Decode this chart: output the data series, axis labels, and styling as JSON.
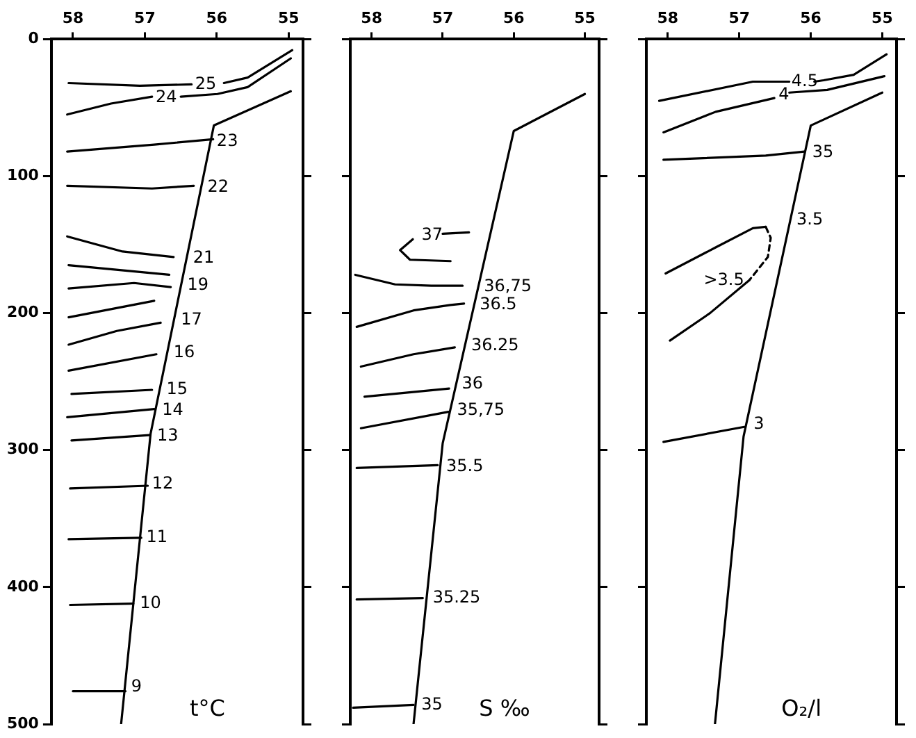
{
  "chart_data": [
    {
      "type": "line",
      "title": "t°C",
      "xlim": [
        58.3,
        54.8
      ],
      "xticks": [
        58,
        57,
        56,
        55
      ],
      "ylim": [
        500,
        0
      ],
      "yticks": [
        0,
        100,
        200,
        300,
        400,
        500
      ],
      "grid": false,
      "marker": "none",
      "series": [
        {
          "color": "#000000",
          "x": [
            54.97,
            56.04,
            56.92,
            57.33
          ],
          "values": [
            38,
            63,
            288,
            500
          ]
        },
        {
          "color": "#000000",
          "x": [
            58.06,
            57.07,
            56.35,
            56.1,
            55.9,
            55.57,
            54.95
          ],
          "values": [
            32,
            34,
            33,
            null,
            32,
            28,
            8
          ]
        },
        {
          "color": "#000000",
          "x": [
            58.08,
            57.47,
            56.9,
            56.7,
            56.5,
            55.99,
            55.57,
            54.97
          ],
          "values": [
            55,
            47,
            42,
            null,
            42,
            40,
            35,
            14
          ]
        },
        {
          "color": "#000000",
          "x": [
            58.08,
            56.87,
            56.05
          ],
          "values": [
            82,
            77,
            73
          ]
        },
        {
          "color": "#000000",
          "x": [
            58.08,
            56.9,
            56.32
          ],
          "values": [
            107,
            109,
            107
          ]
        },
        {
          "color": "#000000",
          "x": [
            58.08,
            57.31,
            56.6
          ],
          "values": [
            144,
            155,
            159
          ]
        },
        {
          "color": "#000000",
          "x": [
            58.06,
            56.66
          ],
          "values": [
            165,
            172
          ]
        },
        {
          "color": "#000000",
          "x": [
            58.06,
            57.15,
            56.64
          ],
          "values": [
            182,
            178,
            181
          ]
        },
        {
          "color": "#000000",
          "x": [
            58.06,
            56.87
          ],
          "values": [
            203,
            191
          ]
        },
        {
          "color": "#000000",
          "x": [
            58.06,
            57.39,
            56.78
          ],
          "values": [
            223,
            213,
            207
          ]
        },
        {
          "color": "#000000",
          "x": [
            58.06,
            56.84
          ],
          "values": [
            242,
            230
          ]
        },
        {
          "color": "#000000",
          "x": [
            58.02,
            56.9
          ],
          "values": [
            259,
            256
          ]
        },
        {
          "color": "#000000",
          "x": [
            58.08,
            56.87
          ],
          "values": [
            276,
            270
          ]
        },
        {
          "color": "#000000",
          "x": [
            58.02,
            56.94
          ],
          "values": [
            293,
            289
          ]
        },
        {
          "color": "#000000",
          "x": [
            58.04,
            56.96
          ],
          "values": [
            328,
            326
          ]
        },
        {
          "color": "#000000",
          "x": [
            58.06,
            57.05
          ],
          "values": [
            365,
            364
          ]
        },
        {
          "color": "#000000",
          "x": [
            58.04,
            57.16
          ],
          "values": [
            413,
            412
          ]
        },
        {
          "color": "#000000",
          "x": [
            58.0,
            57.27
          ],
          "values": [
            476,
            476
          ]
        }
      ],
      "annotations": [
        {
          "text": "25",
          "x": 56.3,
          "y": 33
        },
        {
          "text": "24",
          "x": 56.85,
          "y": 43
        },
        {
          "text": "23",
          "x": 56.0,
          "y": 75
        },
        {
          "text": "22",
          "x": 56.13,
          "y": 108
        },
        {
          "text": "21",
          "x": 56.33,
          "y": 160
        },
        {
          "text": "19",
          "x": 56.41,
          "y": 180
        },
        {
          "text": "17",
          "x": 56.5,
          "y": 205
        },
        {
          "text": "16",
          "x": 56.6,
          "y": 229
        },
        {
          "text": "15",
          "x": 56.7,
          "y": 256
        },
        {
          "text": "14",
          "x": 56.76,
          "y": 271
        },
        {
          "text": "13",
          "x": 56.83,
          "y": 290
        },
        {
          "text": "12",
          "x": 56.9,
          "y": 325
        },
        {
          "text": "11",
          "x": 56.98,
          "y": 364
        },
        {
          "text": "10",
          "x": 57.07,
          "y": 412
        },
        {
          "text": "9",
          "x": 57.19,
          "y": 473
        }
      ]
    },
    {
      "type": "line",
      "title": "S ‰",
      "xlim": [
        58.3,
        54.8
      ],
      "xticks": [
        58,
        57,
        56,
        55
      ],
      "ylim": [
        500,
        0
      ],
      "yticks": [
        0,
        100,
        200,
        300,
        400,
        500
      ],
      "tick_labels": "x",
      "grid": false,
      "marker": "none",
      "series": [
        {
          "color": "#000000",
          "x": [
            55.0,
            56.0,
            57.0,
            57.41
          ],
          "values": [
            40,
            67,
            295,
            500
          ]
        },
        {
          "color": "#000000",
          "x": [
            57.0,
            56.63
          ],
          "values": [
            142,
            141
          ]
        },
        {
          "color": "#000000",
          "x": [
            57.42,
            57.6,
            57.46,
            56.89
          ],
          "values": [
            146,
            154,
            161,
            162
          ]
        },
        {
          "color": "#000000",
          "x": [
            58.23,
            57.67,
            57.16,
            56.72
          ],
          "values": [
            172,
            179,
            180,
            180
          ]
        },
        {
          "color": "#000000",
          "x": [
            58.21,
            57.41,
            56.89,
            56.7
          ],
          "values": [
            210,
            198,
            194,
            193
          ]
        },
        {
          "color": "#000000",
          "x": [
            58.15,
            57.41,
            56.83
          ],
          "values": [
            239,
            230,
            225
          ]
        },
        {
          "color": "#000000",
          "x": [
            58.1,
            56.91
          ],
          "values": [
            261,
            255
          ]
        },
        {
          "color": "#000000",
          "x": [
            58.15,
            56.92
          ],
          "values": [
            284,
            272
          ]
        },
        {
          "color": "#000000",
          "x": [
            58.21,
            57.07
          ],
          "values": [
            313,
            311
          ]
        },
        {
          "color": "#000000",
          "x": [
            58.21,
            57.28
          ],
          "values": [
            409,
            408
          ]
        },
        {
          "color": "#000000",
          "x": [
            58.26,
            57.41
          ],
          "values": [
            488,
            486
          ]
        }
      ],
      "annotations": [
        "37",
        {
          "text": "36,75",
          "x": 56.42,
          "y": 181
        },
        {
          "text": "36.5",
          "x": 56.48,
          "y": 194
        },
        {
          "text": "36.25",
          "x": 56.6,
          "y": 224
        },
        {
          "text": "36",
          "x": 56.73,
          "y": 252
        },
        {
          "text": "35,75",
          "x": 56.8,
          "y": 271
        },
        {
          "text": "35.5",
          "x": 56.95,
          "y": 312
        },
        {
          "text": "35.25",
          "x": 57.14,
          "y": 408
        },
        {
          "text": "35",
          "x": 57.3,
          "y": 486
        }
      ]
    },
    {
      "type": "line",
      "title": "O₂/l",
      "xlim": [
        58.3,
        54.8
      ],
      "xticks": [
        58,
        57,
        56,
        55
      ],
      "ylim": [
        500,
        0
      ],
      "yticks": [
        0,
        100,
        200,
        300,
        400,
        500
      ],
      "tick_labels": "x",
      "grid": false,
      "marker": "none",
      "series": [
        {
          "color": "#000000",
          "x": [
            55.0,
            56.0,
            56.94,
            57.34
          ],
          "values": [
            39,
            63,
            290,
            500
          ]
        },
        {
          "color": "#000000",
          "x": [
            58.12,
            56.81,
            56.3,
            56.2,
            55.95,
            55.82,
            55.4,
            54.94
          ],
          "values": [
            45,
            31,
            31,
            null,
            31,
            30,
            26,
            11
          ]
        },
        {
          "color": "#000000",
          "x": [
            58.06,
            57.33,
            56.51,
            56.45,
            56.3,
            55.77,
            54.97
          ],
          "values": [
            68,
            53,
            43,
            null,
            39,
            37,
            27
          ]
        },
        {
          "color": "#000000",
          "x": [
            58.06,
            56.63,
            56.09
          ],
          "values": [
            88,
            85,
            82
          ]
        },
        {
          "color": "#000000",
          "x": [
            58.03,
            57.33,
            56.81,
            56.63
          ],
          "values": [
            171,
            152,
            138,
            137
          ]
        },
        {
          "color": "#000000",
          "x": [
            56.63,
            56.56,
            56.6,
            56.86
          ],
          "values": [
            137,
            145,
            159,
            176
          ],
          "line_style": "dashed"
        },
        {
          "color": "#000000",
          "x": [
            56.86,
            57.41,
            57.97
          ],
          "values": [
            176,
            200,
            220
          ]
        },
        {
          "color": "#000000",
          "x": [
            58.06,
            56.93
          ],
          "values": [
            294,
            283
          ]
        }
      ],
      "annotations": [
        {
          "text": "4.5",
          "x": 56.27,
          "y": 31
        },
        {
          "text": "4",
          "x": 56.45,
          "y": 41
        },
        {
          "text": "35",
          "x": 55.98,
          "y": 83
        },
        {
          "text": "3.5",
          "x": 56.2,
          "y": 132
        },
        ">3.5",
        {
          "text": "3",
          "x": 56.8,
          "y": 281
        }
      ]
    }
  ]
}
